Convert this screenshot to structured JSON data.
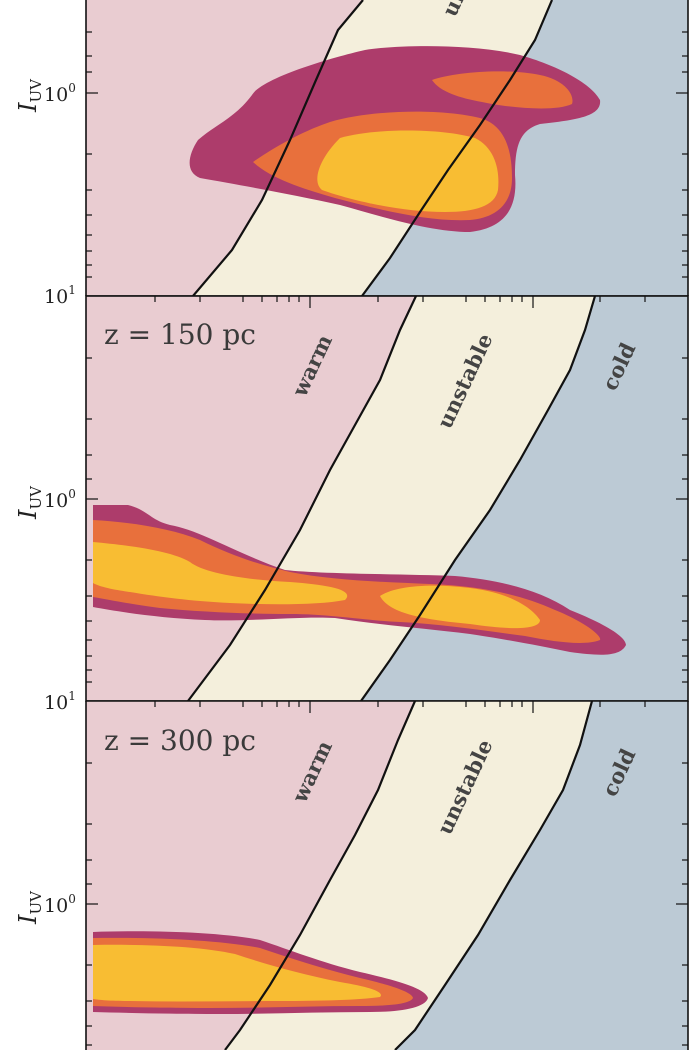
{
  "chart_data": [
    {
      "type": "contour",
      "panel": "top",
      "annotation": "",
      "ylabel": "I",
      "ylabel_sub": "UV",
      "yscale": "log",
      "ytick_labels": [
        {
          "base": "10",
          "exp": "0"
        },
        {
          "base": "10",
          "exp": "1"
        }
      ],
      "regions": [
        {
          "name": "warm",
          "label": "",
          "color": "#e9ccd1"
        },
        {
          "name": "unstable",
          "label": "un",
          "color": "#f4efdc"
        },
        {
          "name": "cold",
          "label": "",
          "color": "#bccad5"
        }
      ],
      "levels": [
        {
          "name": "outer",
          "color": "#ad3c6b"
        },
        {
          "name": "middle",
          "color": "#e8703c"
        },
        {
          "name": "inner",
          "color": "#f8bd33"
        }
      ]
    },
    {
      "type": "contour",
      "panel": "middle",
      "annotation": "z = 150 pc",
      "ylabel": "I",
      "ylabel_sub": "UV",
      "yscale": "log",
      "ytick_labels": [
        {
          "base": "10",
          "exp": "1"
        },
        {
          "base": "10",
          "exp": "0"
        },
        {
          "base": "10",
          "exp": "1"
        }
      ],
      "regions": [
        {
          "name": "warm",
          "label": "warm",
          "color": "#e9ccd1"
        },
        {
          "name": "unstable",
          "label": "unstable",
          "color": "#f4efdc"
        },
        {
          "name": "cold",
          "label": "cold",
          "color": "#bccad5"
        }
      ],
      "levels": [
        {
          "name": "outer",
          "color": "#ad3c6b"
        },
        {
          "name": "middle",
          "color": "#e8703c"
        },
        {
          "name": "inner",
          "color": "#f8bd33"
        }
      ]
    },
    {
      "type": "contour",
      "panel": "bottom",
      "annotation": "z = 300 pc",
      "ylabel": "I",
      "ylabel_sub": "UV",
      "yscale": "log",
      "ytick_labels": [
        {
          "base": "10",
          "exp": "1"
        },
        {
          "base": "10",
          "exp": "0"
        }
      ],
      "regions": [
        {
          "name": "warm",
          "label": "warm",
          "color": "#e9ccd1"
        },
        {
          "name": "unstable",
          "label": "unstable",
          "color": "#f4efdc"
        },
        {
          "name": "cold",
          "label": "cold",
          "color": "#bccad5"
        }
      ],
      "levels": [
        {
          "name": "outer",
          "color": "#ad3c6b"
        },
        {
          "name": "middle",
          "color": "#e8703c"
        },
        {
          "name": "inner",
          "color": "#f8bd33"
        }
      ]
    }
  ]
}
